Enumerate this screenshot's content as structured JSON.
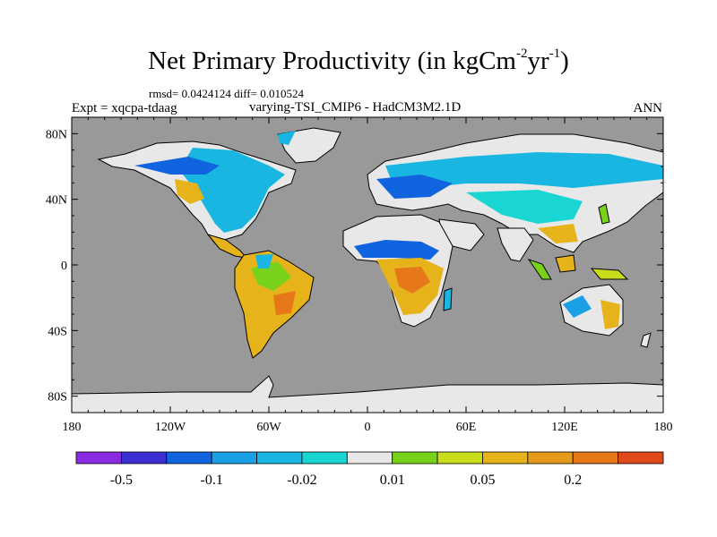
{
  "chart_data": {
    "type": "heatmap",
    "title_main": "Net Primary Productivity (in kgCm",
    "title_exp1": "-2",
    "title_mid": "yr",
    "title_exp2": "-1",
    "title_end": ")",
    "stats": "rmsd= 0.0424124 diff= 0.010524",
    "expt": "Expt = xqcpa-tdaag",
    "comparison": "varying-TSI_CMIP6 - HadCM3M2.1D",
    "season": "ANN",
    "x_ticks": [
      "180",
      "120W",
      "60W",
      "0",
      "60E",
      "120E",
      "180"
    ],
    "x_tick_values": [
      -180,
      -120,
      -60,
      0,
      60,
      120,
      180
    ],
    "y_ticks": [
      "80N",
      "40N",
      "0",
      "40S",
      "80S"
    ],
    "y_tick_values": [
      80,
      40,
      0,
      -40,
      -80
    ],
    "xlim": [
      -180,
      180
    ],
    "ylim": [
      -90,
      90
    ],
    "ocean_color": "#999999",
    "colorbar": {
      "colors": [
        "#8a2be2",
        "#3c2fd4",
        "#1164e0",
        "#1aa0e6",
        "#19b6e2",
        "#19d6d2",
        "#e8e8e8",
        "#78d21a",
        "#c8dc1a",
        "#e6b41a",
        "#e69a1a",
        "#e6781a",
        "#e04a1a"
      ],
      "labels": [
        "-0.5",
        "-0.1",
        "-0.02",
        "0.01",
        "0.05",
        "0.2"
      ],
      "label_positions": [
        1,
        3,
        5,
        7,
        9,
        11
      ]
    }
  }
}
